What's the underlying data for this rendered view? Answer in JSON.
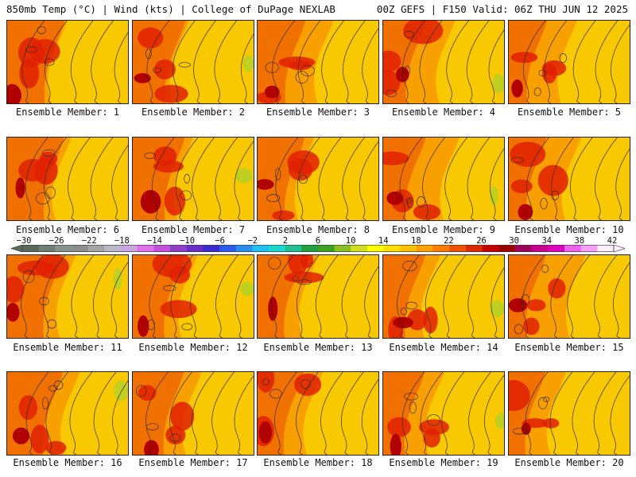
{
  "header": {
    "left": "850mb Temp (°C) | Wind (kts) | College of DuPage NEXLAB",
    "right": "00Z GEFS | F150 Valid: 06Z THU JUN 12 2025"
  },
  "colorbar": {
    "tick_labels": [
      "-30",
      "-26",
      "-22",
      "-18",
      "-14",
      "-10",
      "-6",
      "-2",
      "2",
      "6",
      "10",
      "14",
      "18",
      "22",
      "26",
      "30",
      "34",
      "38",
      "42"
    ],
    "colors": [
      "#5a6b5e",
      "#6f7f74",
      "#87948a",
      "#8d8d8d",
      "#a4a4a4",
      "#b8b8c8",
      "#c9a4e0",
      "#e070f0",
      "#c64fe0",
      "#8e3ec8",
      "#6a2ec8",
      "#3a2ad0",
      "#2a5af0",
      "#2a8ef0",
      "#22c0f0",
      "#18d8d0",
      "#20c090",
      "#20a040",
      "#40a020",
      "#8cc020",
      "#d0e020",
      "#ffff00",
      "#ffe000",
      "#ffc000",
      "#ffa000",
      "#ff7a00",
      "#f05000",
      "#e02800",
      "#c80000",
      "#9e0000",
      "#a00060",
      "#c80090",
      "#e000c0",
      "#f060f0",
      "#f8a0f8",
      "#fff0ff"
    ]
  },
  "members": [
    {
      "label": "Ensemble Member: 1"
    },
    {
      "label": "Ensemble Member: 2"
    },
    {
      "label": "Ensemble Member: 3"
    },
    {
      "label": "Ensemble Member: 4"
    },
    {
      "label": "Ensemble Member: 5"
    },
    {
      "label": "Ensemble Member: 6"
    },
    {
      "label": "Ensemble Member: 7"
    },
    {
      "label": "Ensemble Member: 8"
    },
    {
      "label": "Ensemble Member: 9"
    },
    {
      "label": "Ensemble Member: 10"
    },
    {
      "label": "Ensemble Member: 11"
    },
    {
      "label": "Ensemble Member: 12"
    },
    {
      "label": "Ensemble Member: 13"
    },
    {
      "label": "Ensemble Member: 14"
    },
    {
      "label": "Ensemble Member: 15"
    },
    {
      "label": "Ensemble Member: 16"
    },
    {
      "label": "Ensemble Member: 17"
    },
    {
      "label": "Ensemble Member: 18"
    },
    {
      "label": "Ensemble Member: 19"
    },
    {
      "label": "Ensemble Member: 20"
    }
  ],
  "palette": {
    "warm_yellow": "#f8c800",
    "orange": "#f8a000",
    "dark_orange": "#f07000",
    "red": "#e02000",
    "dark_red": "#b00000",
    "green": "#c0d020",
    "contour": "#3a2a1a"
  }
}
